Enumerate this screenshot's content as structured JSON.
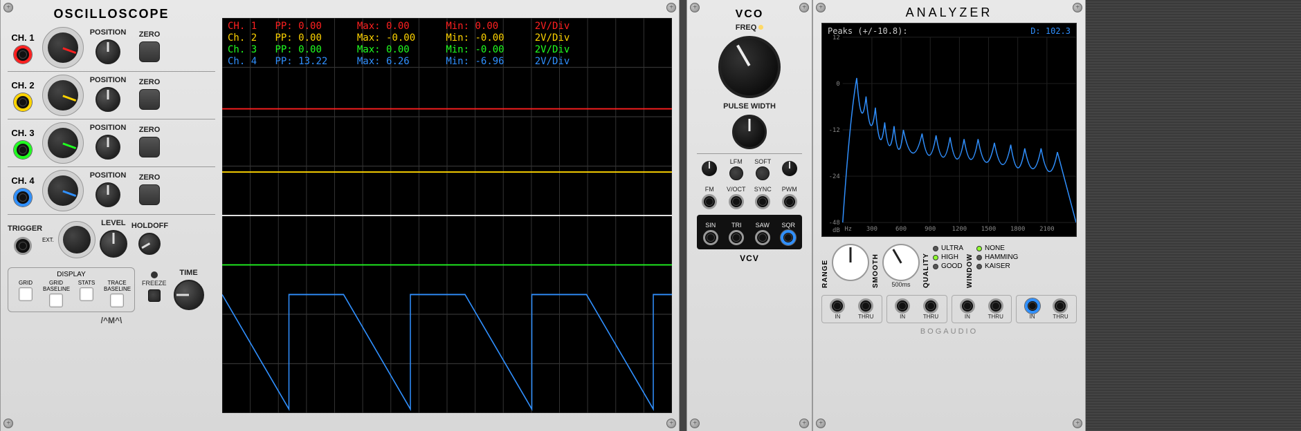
{
  "oscilloscope": {
    "title": "OSCILLOSCOPE",
    "channels": [
      {
        "label": "CH. 1",
        "color": "#ff2020",
        "position_label": "POSITION",
        "zero_label": "ZERO",
        "scale_rot": 110,
        "pos_rot": 0
      },
      {
        "label": "CH. 2",
        "color": "#ffd400",
        "position_label": "POSITION",
        "zero_label": "ZERO",
        "scale_rot": 110,
        "pos_rot": 0
      },
      {
        "label": "CH. 3",
        "color": "#20ff20",
        "position_label": "POSITION",
        "zero_label": "ZERO",
        "scale_rot": 110,
        "pos_rot": 0
      },
      {
        "label": "CH. 4",
        "color": "#3090ff",
        "position_label": "POSITION",
        "zero_label": "ZERO",
        "scale_rot": 110,
        "pos_rot": 0
      }
    ],
    "trigger_label": "TRIGGER",
    "ext_label": "EXT.",
    "level_label": "LEVEL",
    "holdoff_label": "HOLDOFF",
    "display_label": "DISPLAY",
    "display_items": [
      "GRID",
      "GRID BASELINE",
      "STATS",
      "TRACE BASELINE"
    ],
    "freeze_label": "FREEZE",
    "time_label": "TIME",
    "brand": "/^M^\\",
    "readout": [
      {
        "color": "#ff2020",
        "ch": "CH. 1",
        "pp": "PP:   0.00",
        "max": "Max:   0.00",
        "min": "Min:   0.00",
        "div": "2V/Div"
      },
      {
        "color": "#ffd400",
        "ch": "Ch. 2",
        "pp": "PP:   0.00",
        "max": "Max:  -0.00",
        "min": "Min:  -0.00",
        "div": "2V/Div"
      },
      {
        "color": "#20ff20",
        "ch": "Ch. 3",
        "pp": "PP:   0.00",
        "max": "Max:   0.00",
        "min": "Min:  -0.00",
        "div": "2V/Div"
      },
      {
        "color": "#3090ff",
        "ch": "Ch. 4",
        "pp": "PP:  13.22",
        "max": "Max:   6.26",
        "min": "Min:  -6.96",
        "div": "2V/Div"
      }
    ],
    "grid_color": "#333",
    "trace_lines": {
      "ch1_y": 0.23,
      "ch2_y": 0.39,
      "ch3_y": 0.625,
      "sqr_period": 0.27,
      "sqr_top": 0.7,
      "sqr_bot": 0.99
    }
  },
  "vco": {
    "title": "VCO",
    "freq_label": "FREQ",
    "pw_label": "PULSE WIDTH",
    "lfm_label": "LFM",
    "soft_label": "SOFT",
    "row_labels": [
      "FM",
      "V/OCT",
      "SYNC",
      "PWM"
    ],
    "out_labels": [
      "SIN",
      "TRI",
      "SAW",
      "SQR"
    ],
    "brand": "VCV",
    "freq_rot": -30,
    "pw_rot": 0,
    "fm_rot": 0,
    "pwm_rot": 0,
    "sqr_port_color": "#3090ff"
  },
  "analyzer": {
    "title": "ANALYZER",
    "peaks_label": "Peaks (+/-10.8):",
    "d_value": "D:   102.3",
    "d_color": "#3090ff",
    "y_ticks": [
      "12",
      "0",
      "-12",
      "-24",
      "-48"
    ],
    "y_unit": "dB",
    "x_ticks": [
      "300",
      "600",
      "900",
      "1200",
      "1500",
      "1800",
      "2100"
    ],
    "x_unit": "Hz",
    "range_label": "RANGE",
    "smooth_label": "SMOOTH",
    "smooth_ms": "500ms",
    "quality_label": "QUALITY",
    "quality_opts": [
      {
        "label": "ULTRA",
        "on": false
      },
      {
        "label": "HIGH",
        "on": true
      },
      {
        "label": "GOOD",
        "on": false
      }
    ],
    "window_label": "WINDOW",
    "window_opts": [
      {
        "label": "NONE",
        "on": true
      },
      {
        "label": "HAMMING",
        "on": false
      },
      {
        "label": "KAISER",
        "on": false
      }
    ],
    "in_label": "IN",
    "thru_label": "THRU",
    "brand": "BOGAUDIO",
    "range_rot": 0,
    "smooth_rot": -30,
    "in4_color": "#3090ff",
    "spectrum_peaks": [
      [
        0.06,
        0.22
      ],
      [
        0.1,
        0.32
      ],
      [
        0.14,
        0.38
      ],
      [
        0.18,
        0.46
      ],
      [
        0.22,
        0.48
      ],
      [
        0.26,
        0.5
      ],
      [
        0.34,
        0.52
      ],
      [
        0.4,
        0.53
      ],
      [
        0.46,
        0.54
      ],
      [
        0.52,
        0.55
      ],
      [
        0.58,
        0.55
      ],
      [
        0.65,
        0.57
      ],
      [
        0.72,
        0.58
      ],
      [
        0.78,
        0.6
      ],
      [
        0.85,
        0.6
      ],
      [
        0.92,
        0.62
      ]
    ],
    "spectrum_trough_drop": 0.22
  }
}
